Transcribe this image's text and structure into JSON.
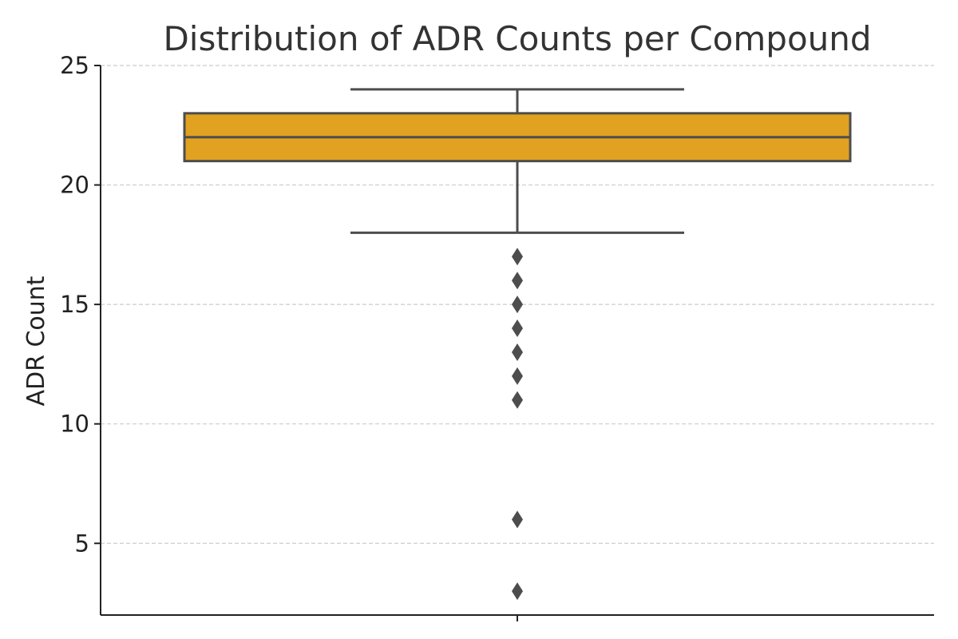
{
  "chart_data": {
    "type": "box",
    "title": "Distribution of ADR Counts per Compound",
    "xlabel": "",
    "ylabel": "ADR Count",
    "ylim": [
      2,
      25
    ],
    "yticks": [
      5,
      10,
      15,
      20,
      25
    ],
    "grid": "y-dashed",
    "box": {
      "whisker_low": 18,
      "q1": 21,
      "median": 22,
      "q3": 23,
      "whisker_high": 24,
      "outliers": [
        17,
        16,
        15,
        14,
        13,
        12,
        11,
        6,
        3
      ]
    },
    "colors": {
      "box_fill": "#E0A220",
      "box_line": "#4D4D4D",
      "grid": "#CCCCCC",
      "axis": "#222222",
      "outlier": "#4D4D4D"
    }
  }
}
